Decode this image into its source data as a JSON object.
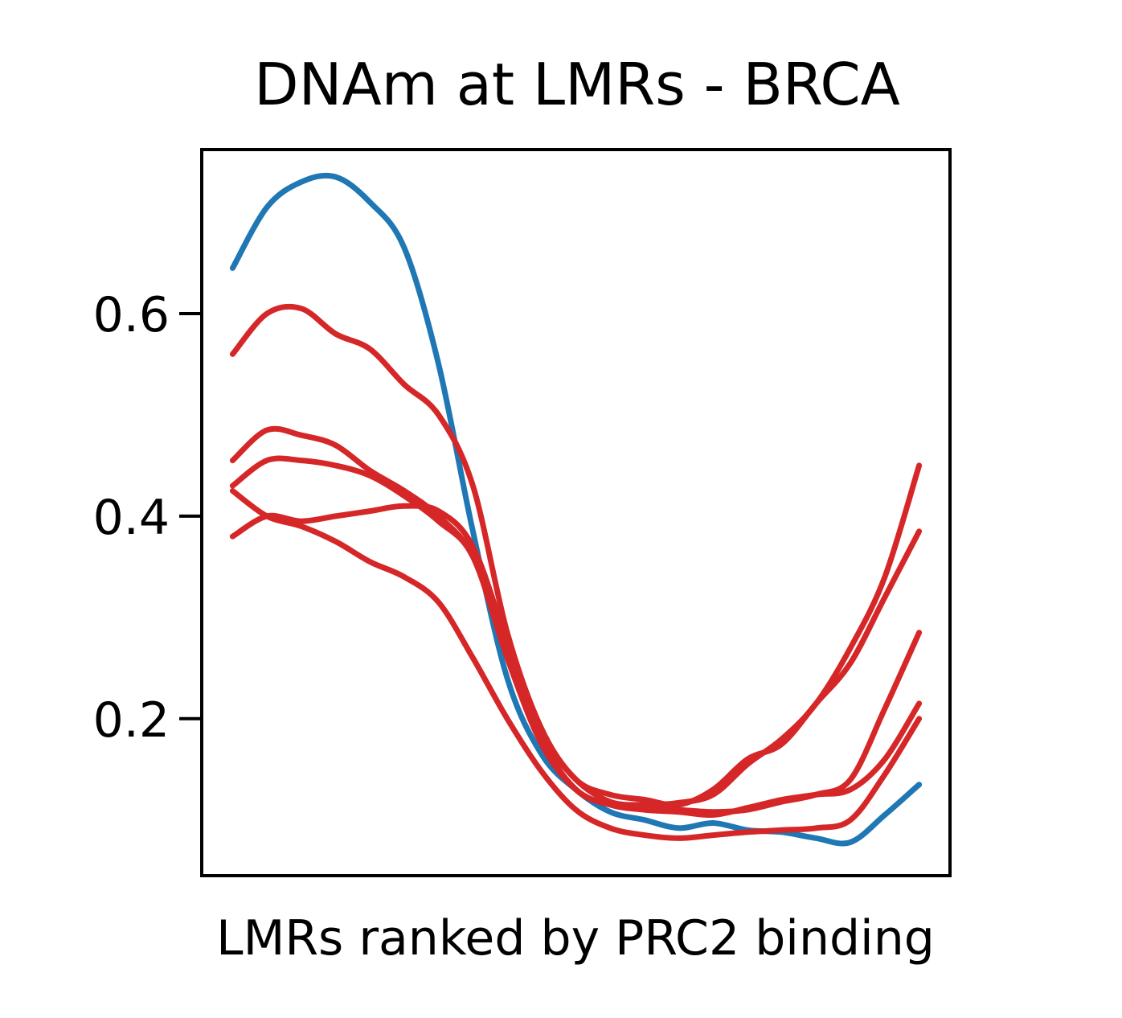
{
  "chart_data": {
    "type": "line",
    "title": "DNAm at LMRs - BRCA",
    "xlabel": "LMRs ranked by PRC2 binding",
    "ylabel": "",
    "xlim": [
      -0.045,
      1.045
    ],
    "ylim": [
      0.045,
      0.762
    ],
    "x_ticks": [],
    "y_ticks": [
      0.2,
      0.4,
      0.6
    ],
    "y_tick_labels": [
      "0.2",
      "0.4",
      "0.6"
    ],
    "grid": false,
    "legend": "none",
    "colors": {
      "blue": "#1f77b4",
      "red": "#d62728"
    },
    "series": [
      {
        "color": "#1f77b4",
        "x": [
          0,
          0.05,
          0.1,
          0.15,
          0.2,
          0.25,
          0.3,
          0.35,
          0.4,
          0.45,
          0.5,
          0.55,
          0.6,
          0.65,
          0.7,
          0.75,
          0.8,
          0.85,
          0.9,
          0.95,
          1.0
        ],
        "y": [
          0.645,
          0.705,
          0.73,
          0.735,
          0.71,
          0.665,
          0.55,
          0.385,
          0.24,
          0.165,
          0.13,
          0.108,
          0.1,
          0.092,
          0.097,
          0.09,
          0.088,
          0.082,
          0.078,
          0.105,
          0.135
        ]
      },
      {
        "color": "#d62728",
        "x": [
          0,
          0.05,
          0.1,
          0.15,
          0.2,
          0.25,
          0.3,
          0.35,
          0.4,
          0.45,
          0.5,
          0.55,
          0.6,
          0.65,
          0.7,
          0.75,
          0.8,
          0.85,
          0.9,
          0.95,
          1.0
        ],
        "y": [
          0.56,
          0.6,
          0.605,
          0.58,
          0.565,
          0.53,
          0.5,
          0.43,
          0.285,
          0.19,
          0.14,
          0.125,
          0.12,
          0.115,
          0.13,
          0.16,
          0.175,
          0.215,
          0.255,
          0.32,
          0.385
        ]
      },
      {
        "color": "#d62728",
        "x": [
          0,
          0.05,
          0.1,
          0.15,
          0.2,
          0.25,
          0.3,
          0.35,
          0.4,
          0.45,
          0.5,
          0.55,
          0.6,
          0.65,
          0.7,
          0.75,
          0.8,
          0.85,
          0.9,
          0.95,
          1.0
        ],
        "y": [
          0.455,
          0.485,
          0.48,
          0.47,
          0.445,
          0.425,
          0.4,
          0.36,
          0.265,
          0.185,
          0.14,
          0.118,
          0.115,
          0.117,
          0.125,
          0.155,
          0.18,
          0.215,
          0.27,
          0.34,
          0.45
        ]
      },
      {
        "color": "#d62728",
        "x": [
          0,
          0.05,
          0.1,
          0.15,
          0.2,
          0.25,
          0.3,
          0.35,
          0.4,
          0.45,
          0.5,
          0.55,
          0.6,
          0.65,
          0.7,
          0.75,
          0.8,
          0.85,
          0.9,
          0.95,
          1.0
        ],
        "y": [
          0.43,
          0.455,
          0.455,
          0.45,
          0.44,
          0.42,
          0.395,
          0.36,
          0.26,
          0.175,
          0.13,
          0.115,
          0.112,
          0.11,
          0.108,
          0.11,
          0.118,
          0.125,
          0.14,
          0.21,
          0.285
        ]
      },
      {
        "color": "#d62728",
        "x": [
          0,
          0.05,
          0.1,
          0.15,
          0.2,
          0.25,
          0.3,
          0.35,
          0.4,
          0.45,
          0.5,
          0.55,
          0.6,
          0.65,
          0.7,
          0.75,
          0.8,
          0.85,
          0.9,
          0.95,
          1.0
        ],
        "y": [
          0.38,
          0.4,
          0.395,
          0.4,
          0.405,
          0.41,
          0.405,
          0.37,
          0.275,
          0.18,
          0.13,
          0.115,
          0.11,
          0.108,
          0.105,
          0.112,
          0.12,
          0.125,
          0.13,
          0.16,
          0.215
        ]
      },
      {
        "color": "#d62728",
        "x": [
          0,
          0.05,
          0.1,
          0.15,
          0.2,
          0.25,
          0.3,
          0.35,
          0.4,
          0.45,
          0.5,
          0.55,
          0.6,
          0.65,
          0.7,
          0.75,
          0.8,
          0.85,
          0.9,
          0.95,
          1.0
        ],
        "y": [
          0.425,
          0.4,
          0.39,
          0.375,
          0.355,
          0.34,
          0.315,
          0.26,
          0.2,
          0.148,
          0.11,
          0.092,
          0.085,
          0.082,
          0.085,
          0.088,
          0.09,
          0.092,
          0.1,
          0.145,
          0.2
        ]
      }
    ]
  }
}
